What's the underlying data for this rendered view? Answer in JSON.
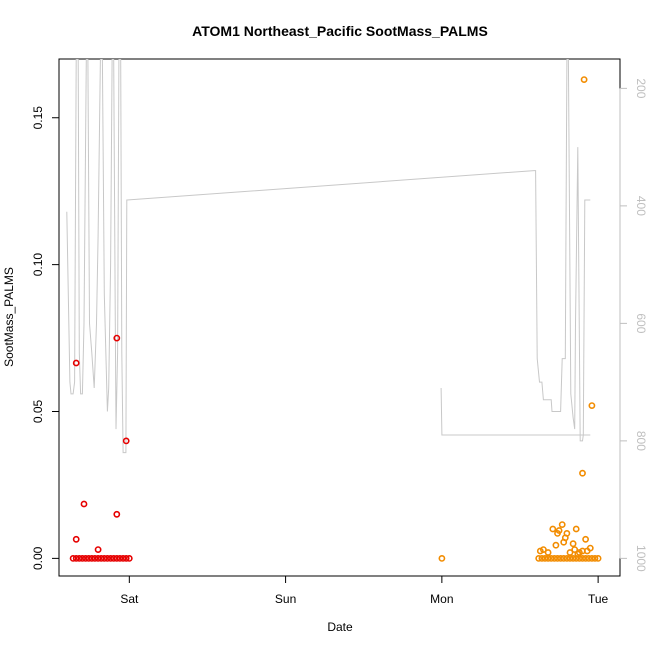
{
  "chart_data": {
    "type": "scatter",
    "title": "ATOM1 Northeast_Pacific SootMass_PALMS",
    "xlabel": "Date",
    "ylabel": "SootMass_PALMS",
    "x_ticks": [
      "Sat",
      "Sun",
      "Mon",
      "Tue"
    ],
    "x_tick_days": [
      1,
      2,
      3,
      4
    ],
    "xlim_days": [
      0.55,
      4.14
    ],
    "ylim": [
      -0.006,
      0.17
    ],
    "y_ticks": [
      0.0,
      0.05,
      0.1,
      0.15
    ],
    "y_tick_labels": [
      "0.00",
      "0.05",
      "0.10",
      "0.15"
    ],
    "right_axis": {
      "label": "",
      "ticks": [
        200,
        400,
        600,
        800,
        1000
      ],
      "ylim": [
        1030,
        150
      ],
      "color": "#bfbfbf"
    },
    "colors": {
      "series1": "#e60000",
      "series2": "#f28c00",
      "altitude": "#c8c8c8",
      "axis": "#000000"
    },
    "grid": false,
    "series": [
      {
        "color": "#e60000",
        "points": [
          {
            "x": 0.64,
            "y": 0.0
          },
          {
            "x": 0.66,
            "y": 0.0
          },
          {
            "x": 0.68,
            "y": 0.0
          },
          {
            "x": 0.7,
            "y": 0.0
          },
          {
            "x": 0.72,
            "y": 0.0
          },
          {
            "x": 0.74,
            "y": 0.0
          },
          {
            "x": 0.76,
            "y": 0.0
          },
          {
            "x": 0.78,
            "y": 0.0
          },
          {
            "x": 0.8,
            "y": 0.0
          },
          {
            "x": 0.82,
            "y": 0.0
          },
          {
            "x": 0.84,
            "y": 0.0
          },
          {
            "x": 0.86,
            "y": 0.0
          },
          {
            "x": 0.88,
            "y": 0.0
          },
          {
            "x": 0.9,
            "y": 0.0
          },
          {
            "x": 0.92,
            "y": 0.0
          },
          {
            "x": 0.94,
            "y": 0.0
          },
          {
            "x": 0.96,
            "y": 0.0
          },
          {
            "x": 0.98,
            "y": 0.0
          },
          {
            "x": 1.0,
            "y": 0.0
          },
          {
            "x": 0.66,
            "y": 0.0065
          },
          {
            "x": 0.66,
            "y": 0.0665
          },
          {
            "x": 0.71,
            "y": 0.0185
          },
          {
            "x": 0.8,
            "y": 0.003
          },
          {
            "x": 0.92,
            "y": 0.075
          },
          {
            "x": 0.92,
            "y": 0.015
          },
          {
            "x": 0.98,
            "y": 0.04
          }
        ]
      },
      {
        "color": "#f28c00",
        "points": [
          {
            "x": 3.0,
            "y": 0.0
          },
          {
            "x": 3.62,
            "y": 0.0
          },
          {
            "x": 3.64,
            "y": 0.0
          },
          {
            "x": 3.66,
            "y": 0.0
          },
          {
            "x": 3.68,
            "y": 0.0
          },
          {
            "x": 3.7,
            "y": 0.0
          },
          {
            "x": 3.72,
            "y": 0.0
          },
          {
            "x": 3.74,
            "y": 0.0
          },
          {
            "x": 3.76,
            "y": 0.0
          },
          {
            "x": 3.78,
            "y": 0.0
          },
          {
            "x": 3.8,
            "y": 0.0
          },
          {
            "x": 3.82,
            "y": 0.0
          },
          {
            "x": 3.84,
            "y": 0.0
          },
          {
            "x": 3.86,
            "y": 0.0
          },
          {
            "x": 3.88,
            "y": 0.0
          },
          {
            "x": 3.9,
            "y": 0.0
          },
          {
            "x": 3.92,
            "y": 0.0
          },
          {
            "x": 3.94,
            "y": 0.0
          },
          {
            "x": 3.96,
            "y": 0.0
          },
          {
            "x": 3.98,
            "y": 0.0
          },
          {
            "x": 4.0,
            "y": 0.0
          },
          {
            "x": 3.63,
            "y": 0.0025
          },
          {
            "x": 3.65,
            "y": 0.003
          },
          {
            "x": 3.68,
            "y": 0.002
          },
          {
            "x": 3.71,
            "y": 0.01
          },
          {
            "x": 3.74,
            "y": 0.0085
          },
          {
            "x": 3.75,
            "y": 0.0095
          },
          {
            "x": 3.77,
            "y": 0.0115
          },
          {
            "x": 3.78,
            "y": 0.0055
          },
          {
            "x": 3.79,
            "y": 0.007
          },
          {
            "x": 3.8,
            "y": 0.0085
          },
          {
            "x": 3.82,
            "y": 0.002
          },
          {
            "x": 3.84,
            "y": 0.005
          },
          {
            "x": 3.85,
            "y": 0.003
          },
          {
            "x": 3.87,
            "y": 0.0015
          },
          {
            "x": 3.9,
            "y": 0.0025
          },
          {
            "x": 3.92,
            "y": 0.0065
          },
          {
            "x": 3.95,
            "y": 0.0035
          },
          {
            "x": 3.9,
            "y": 0.029
          },
          {
            "x": 3.91,
            "y": 0.163
          },
          {
            "x": 3.96,
            "y": 0.052
          },
          {
            "x": 3.73,
            "y": 0.0045
          },
          {
            "x": 3.86,
            "y": 0.01
          },
          {
            "x": 3.88,
            "y": 0.002
          },
          {
            "x": 3.93,
            "y": 0.0025
          }
        ]
      }
    ],
    "altitude_line": {
      "color": "#c8c8c8",
      "segments": [
        {
          "points": [
            [
              0.6,
              410
            ],
            [
              0.62,
              700
            ],
            [
              0.627,
              720
            ],
            [
              0.64,
              720
            ],
            [
              0.65,
              700
            ],
            [
              0.66,
              150
            ],
            [
              0.673,
              150
            ],
            [
              0.68,
              650
            ],
            [
              0.688,
              720
            ],
            [
              0.7,
              720
            ],
            [
              0.71,
              600
            ],
            [
              0.725,
              150
            ],
            [
              0.735,
              150
            ],
            [
              0.745,
              600
            ],
            [
              0.76,
              650
            ],
            [
              0.775,
              710
            ],
            [
              0.79,
              600
            ],
            [
              0.8,
              450
            ],
            [
              0.815,
              150
            ],
            [
              0.828,
              150
            ],
            [
              0.84,
              550
            ],
            [
              0.86,
              750
            ],
            [
              0.868,
              710
            ],
            [
              0.88,
              500
            ],
            [
              0.89,
              150
            ],
            [
              0.9,
              150
            ],
            [
              0.91,
              600
            ],
            [
              0.915,
              780
            ],
            [
              0.925,
              650
            ],
            [
              0.933,
              150
            ],
            [
              0.945,
              150
            ],
            [
              0.952,
              650
            ],
            [
              0.96,
              820
            ],
            [
              0.967,
              820
            ],
            [
              0.978,
              820
            ],
            [
              0.984,
              390
            ],
            [
              3.59,
              340
            ],
            [
              3.6,
              340
            ],
            [
              3.61,
              660
            ],
            [
              3.625,
              700
            ],
            [
              3.64,
              700
            ],
            [
              3.65,
              730
            ],
            [
              3.7,
              730
            ],
            [
              3.705,
              750
            ],
            [
              3.76,
              750
            ],
            [
              3.77,
              660
            ],
            [
              3.79,
              660
            ],
            [
              3.8,
              150
            ],
            [
              3.81,
              150
            ],
            [
              3.825,
              720
            ],
            [
              3.84,
              760
            ],
            [
              3.85,
              780
            ],
            [
              3.855,
              600
            ],
            [
              3.87,
              300
            ],
            [
              3.885,
              800
            ],
            [
              3.9,
              800
            ],
            [
              3.905,
              790
            ],
            [
              3.915,
              390
            ],
            [
              3.935,
              390
            ],
            [
              3.95,
              390
            ]
          ]
        },
        {
          "points": [
            [
              2.995,
              710
            ],
            [
              3.0,
              790
            ],
            [
              3.95,
              790
            ]
          ]
        }
      ]
    }
  }
}
